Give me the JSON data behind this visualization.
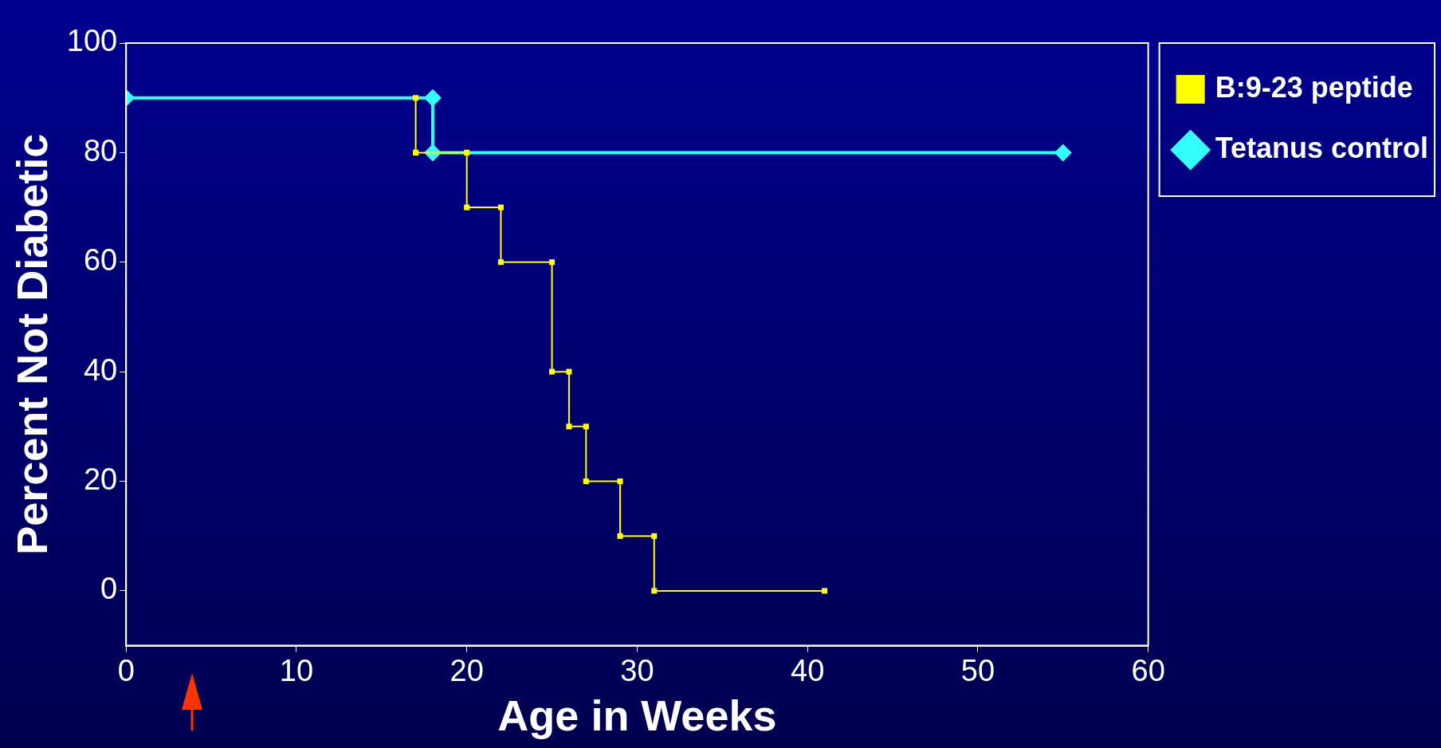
{
  "chart_data": {
    "type": "line",
    "xlabel": "Age in Weeks",
    "ylabel": "Percent Not Diabetic",
    "xlim": [
      0,
      60
    ],
    "xticks": [
      0,
      10,
      20,
      30,
      40,
      50,
      60
    ],
    "ylim": [
      -10,
      100
    ],
    "yticks": [
      0,
      20,
      40,
      60,
      80,
      100
    ],
    "grid": false,
    "legend": "right",
    "series": [
      {
        "name": "B:9-23 peptide",
        "color": "#ffff00",
        "marker": "square",
        "x": [
          17,
          17,
          20,
          20,
          22,
          22,
          25,
          25,
          26,
          26,
          27,
          27,
          29,
          29,
          31,
          31,
          41
        ],
        "values": [
          90,
          80,
          80,
          70,
          70,
          60,
          60,
          40,
          40,
          30,
          30,
          20,
          20,
          10,
          10,
          0,
          0
        ]
      },
      {
        "name": "Tetanus control",
        "color": "#33ffff",
        "marker": "diamond",
        "x": [
          0,
          18,
          18,
          55
        ],
        "values": [
          90,
          90,
          80,
          80
        ]
      }
    ]
  }
}
